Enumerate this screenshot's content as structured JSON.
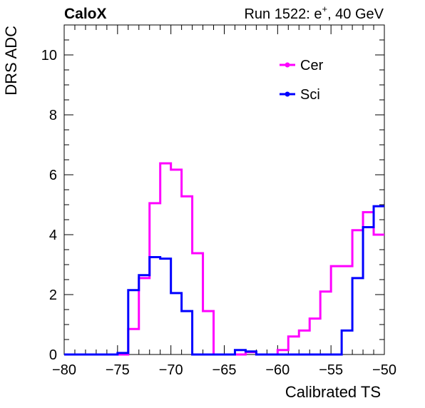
{
  "header": {
    "experiment": "CaloX",
    "run_info_prefix": "Run 1522: e",
    "run_info_superscript": "+",
    "run_info_suffix": ", 40 GeV"
  },
  "chart_data": {
    "type": "histogram-step",
    "title": "",
    "xlabel": "Calibrated TS",
    "ylabel": "DRS ADC",
    "xlim": [
      -80,
      -50
    ],
    "ylim": [
      0,
      11
    ],
    "x_ticks": [
      -80,
      -75,
      -70,
      -65,
      -60,
      -55,
      -50
    ],
    "x_tick_labels": [
      "−80",
      "−75",
      "−70",
      "−65",
      "−60",
      "−55",
      "−50"
    ],
    "y_ticks": [
      0,
      2,
      4,
      6,
      8,
      10
    ],
    "y_tick_labels": [
      "0",
      "2",
      "4",
      "6",
      "8",
      "10"
    ],
    "grid": false,
    "legend": {
      "placement": "top-right"
    },
    "bin_edges": [
      -80,
      -79,
      -78,
      -77,
      -76,
      -75,
      -74,
      -73,
      -72,
      -71,
      -70,
      -69,
      -68,
      -67,
      -66,
      -65,
      -64,
      -63,
      -62,
      -61,
      -60,
      -59,
      -58,
      -57,
      -56,
      -55,
      -54,
      -53,
      -52,
      -51,
      -50
    ],
    "series": [
      {
        "name": "Cer",
        "color": "#ff00ff",
        "values": [
          0,
          0,
          0,
          0,
          0,
          0,
          0.85,
          2.55,
          5.05,
          6.38,
          6.17,
          5.28,
          3.38,
          1.45,
          0,
          0,
          0,
          0.08,
          0,
          0,
          0.15,
          0.6,
          0.8,
          1.2,
          2.1,
          2.95,
          2.95,
          4.15,
          4.75,
          4.0
        ]
      },
      {
        "name": "Sci",
        "color": "#0000ff",
        "values": [
          0,
          0,
          0,
          0,
          0,
          0.05,
          2.15,
          2.65,
          3.25,
          3.2,
          2.05,
          1.45,
          0,
          0,
          0,
          0,
          0.15,
          0.1,
          0,
          0,
          0,
          0,
          0,
          0,
          0,
          0,
          0.8,
          2.55,
          4.25,
          4.95
        ]
      }
    ]
  }
}
